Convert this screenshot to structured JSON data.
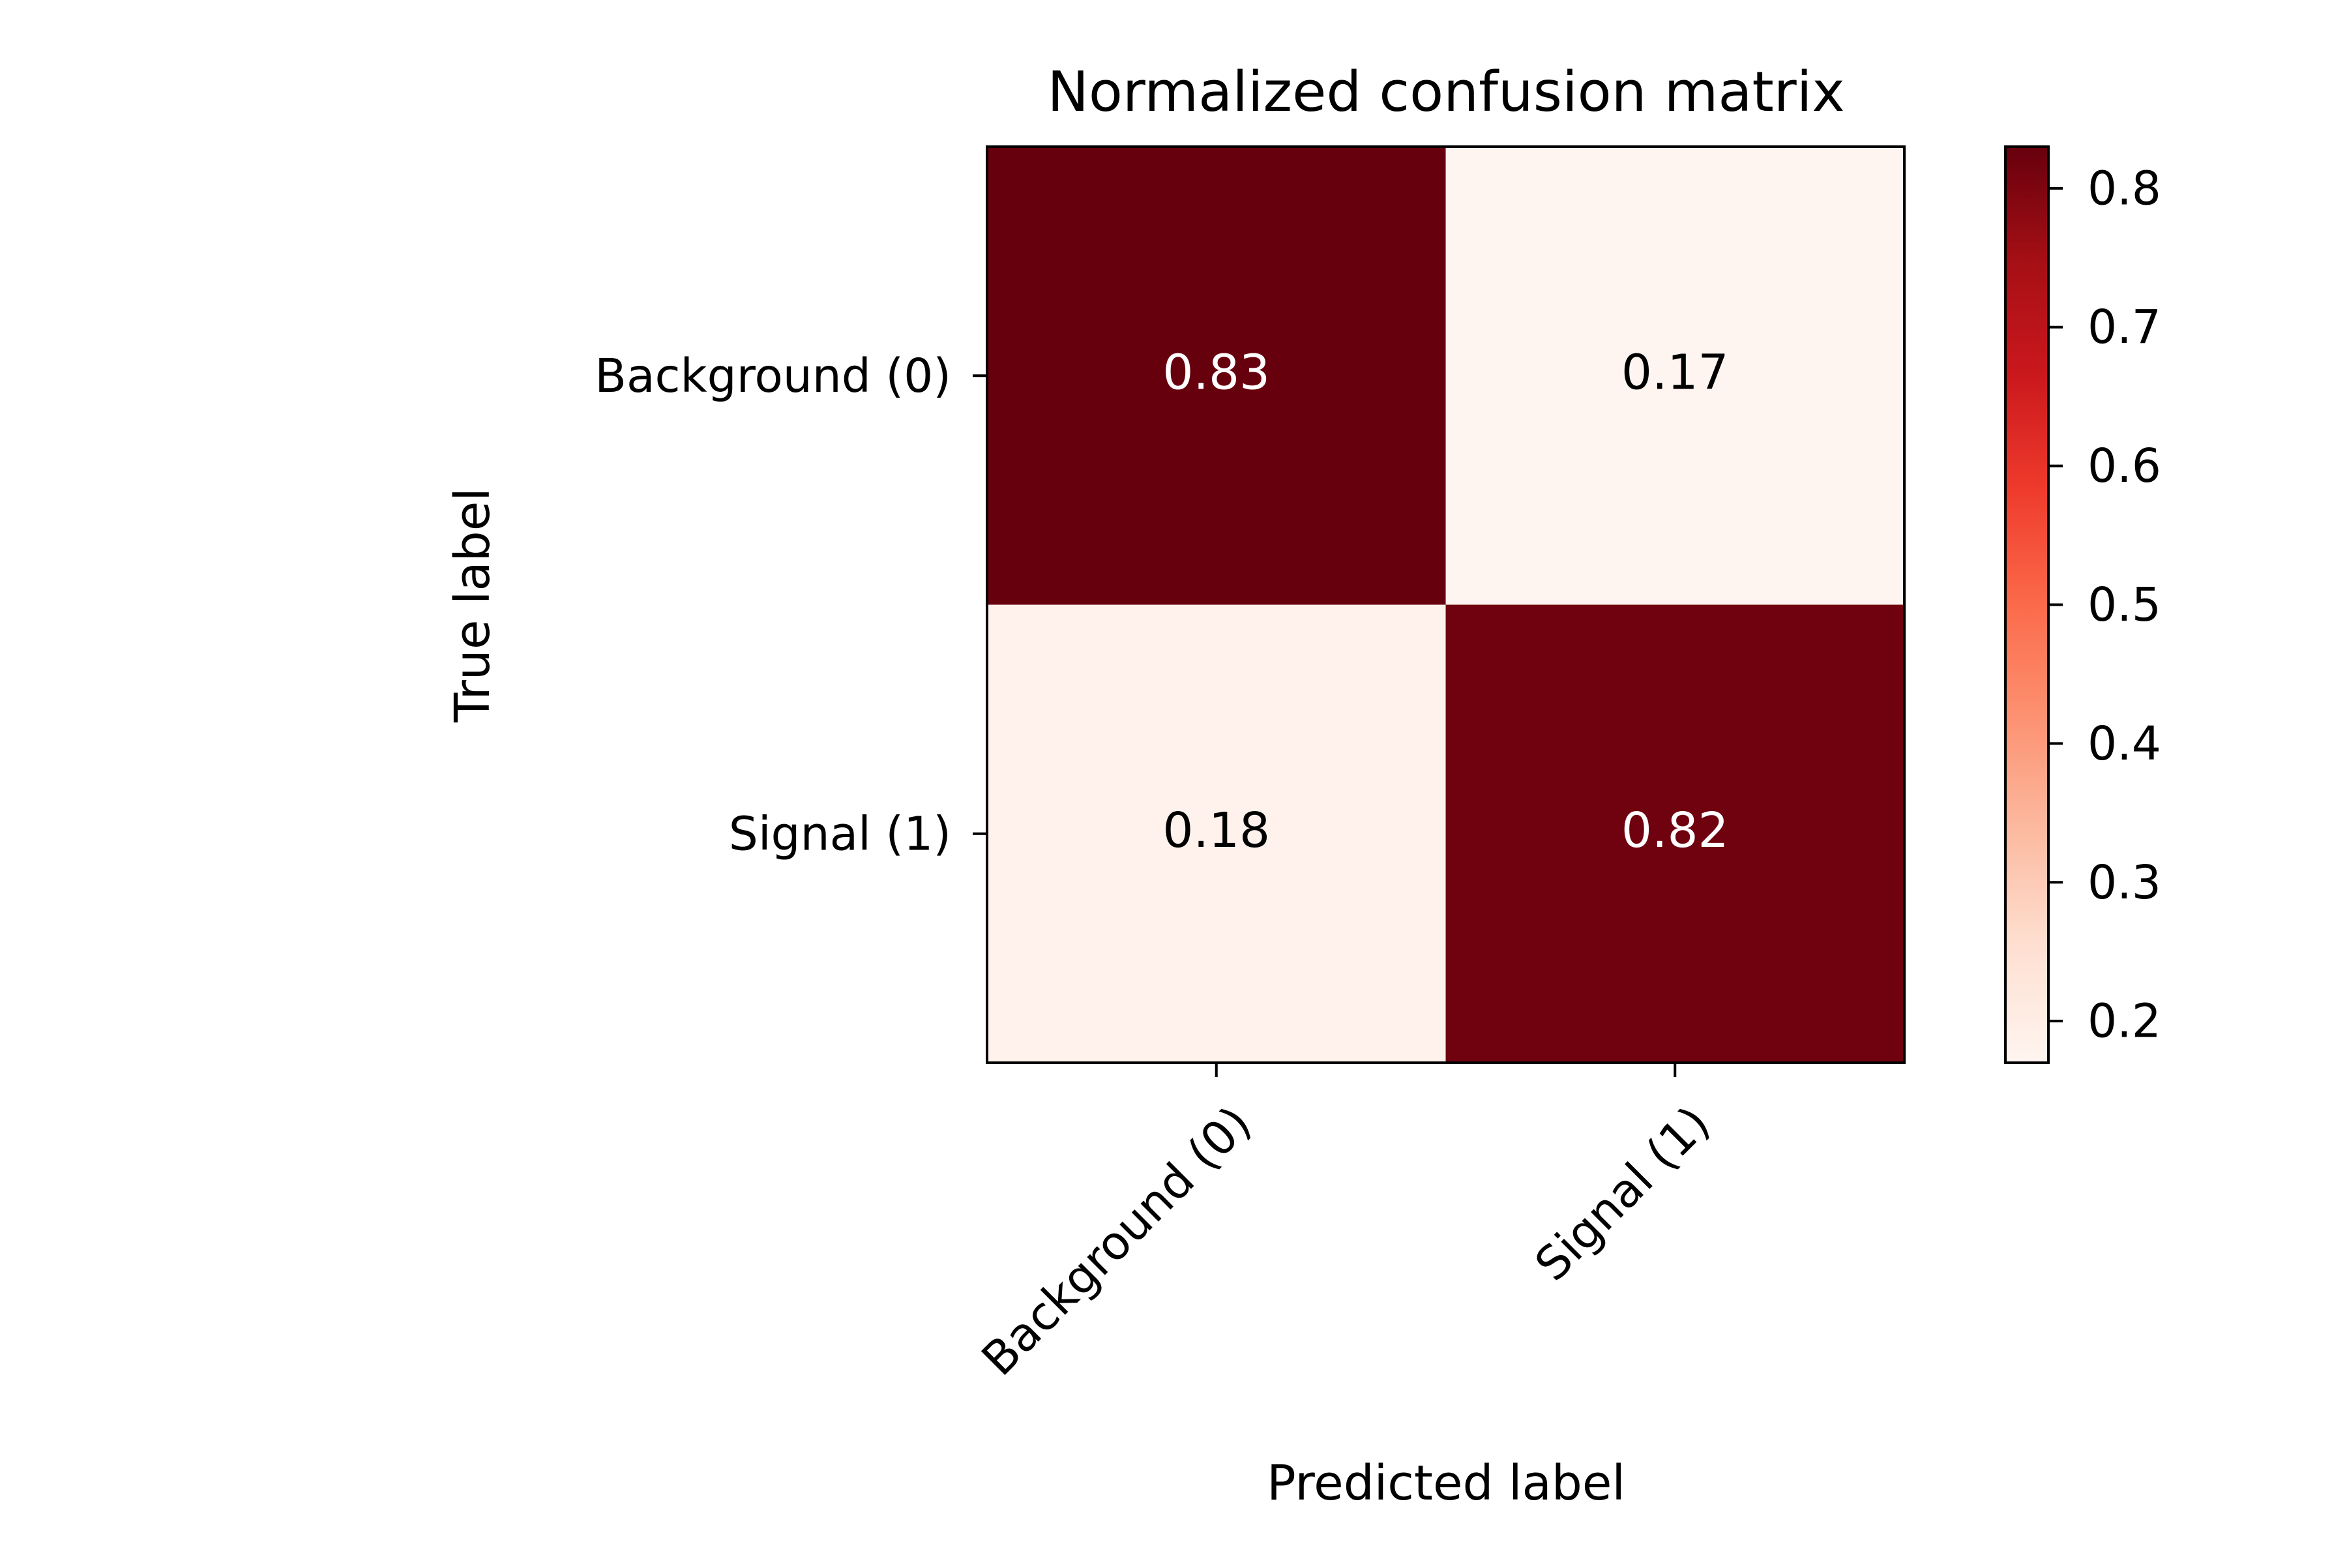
{
  "chart_data": {
    "type": "heatmap",
    "title": "Normalized confusion matrix",
    "xlabel": "Predicted label",
    "ylabel": "True label",
    "x_categories": [
      "Background (0)",
      "Signal (1)"
    ],
    "y_categories": [
      "Background (0)",
      "Signal (1)"
    ],
    "values": [
      [
        0.83,
        0.17
      ],
      [
        0.18,
        0.82
      ]
    ],
    "value_labels": [
      [
        "0.83",
        "0.17"
      ],
      [
        "0.18",
        "0.82"
      ]
    ],
    "colormap": "Reds",
    "color_range": [
      0.17,
      0.83
    ],
    "colorbar": {
      "ticks": [
        0.2,
        0.3,
        0.4,
        0.5,
        0.6,
        0.7,
        0.8
      ],
      "tick_labels": [
        "0.2",
        "0.3",
        "0.4",
        "0.5",
        "0.6",
        "0.7",
        "0.8"
      ]
    },
    "x_tick_rotation": 45,
    "grid": false
  }
}
